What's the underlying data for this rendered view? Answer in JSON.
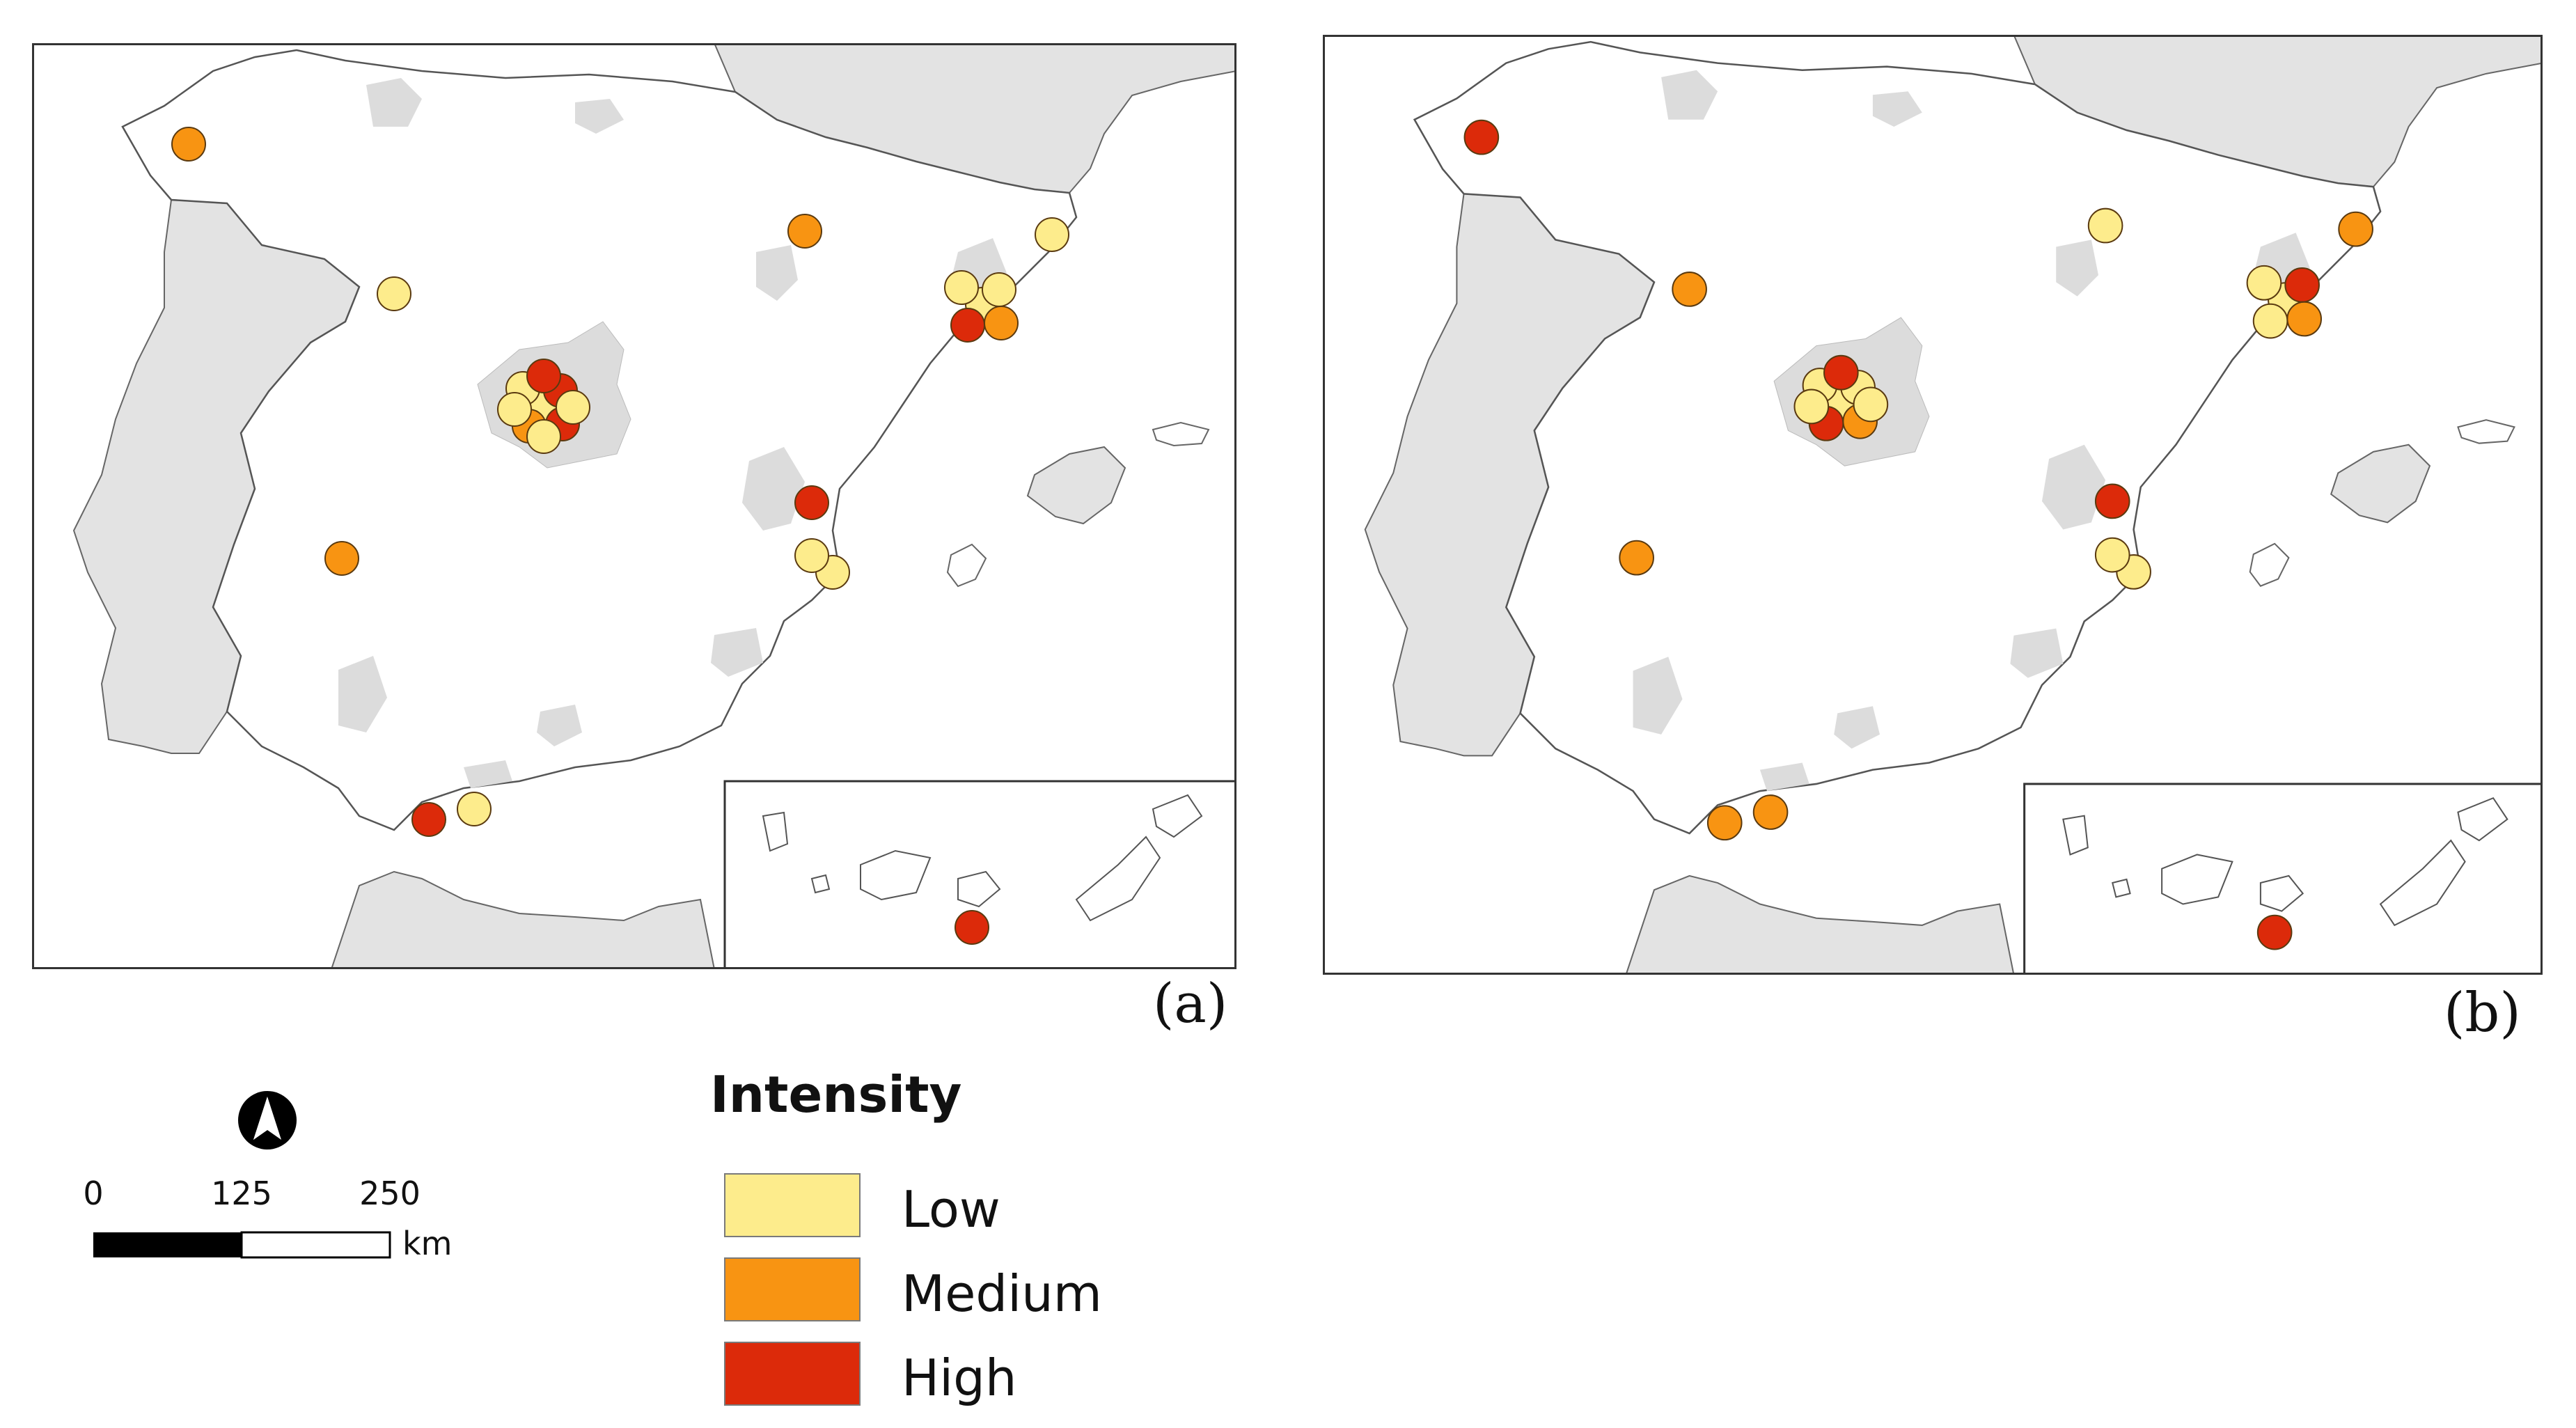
{
  "panels": [
    {
      "label": "(a)",
      "points": [
        {
          "intensity": "Medium",
          "place": "galicia-north"
        },
        {
          "intensity": "Medium",
          "place": "north-center"
        },
        {
          "intensity": "Low",
          "place": "northwest-inland"
        },
        {
          "intensity": "Low",
          "place": "barcelona"
        },
        {
          "intensity": "Low",
          "place": "barcelona"
        },
        {
          "intensity": "Low",
          "place": "girona-coast"
        },
        {
          "intensity": "Low",
          "place": "barcelona"
        },
        {
          "intensity": "High",
          "place": "barcelona"
        },
        {
          "intensity": "Medium",
          "place": "barcelona"
        },
        {
          "intensity": "Low",
          "place": "madrid"
        },
        {
          "intensity": "Low",
          "place": "madrid"
        },
        {
          "intensity": "High",
          "place": "madrid"
        },
        {
          "intensity": "Medium",
          "place": "madrid"
        },
        {
          "intensity": "High",
          "place": "madrid"
        },
        {
          "intensity": "High",
          "place": "madrid"
        },
        {
          "intensity": "Low",
          "place": "madrid"
        },
        {
          "intensity": "Low",
          "place": "madrid"
        },
        {
          "intensity": "Low",
          "place": "madrid"
        },
        {
          "intensity": "High",
          "place": "valencia"
        },
        {
          "intensity": "Low",
          "place": "valencia-coast"
        },
        {
          "intensity": "Low",
          "place": "valencia-coast"
        },
        {
          "intensity": "Medium",
          "place": "extremadura"
        },
        {
          "intensity": "High",
          "place": "gibraltar"
        },
        {
          "intensity": "Low",
          "place": "malaga"
        },
        {
          "intensity": "High",
          "place": "canaries"
        }
      ]
    },
    {
      "label": "(b)",
      "points": [
        {
          "intensity": "High",
          "place": "galicia-north"
        },
        {
          "intensity": "Low",
          "place": "north-center"
        },
        {
          "intensity": "Medium",
          "place": "northwest-inland"
        },
        {
          "intensity": "Medium",
          "place": "girona-coast"
        },
        {
          "intensity": "Low",
          "place": "barcelona"
        },
        {
          "intensity": "Low",
          "place": "barcelona"
        },
        {
          "intensity": "High",
          "place": "barcelona"
        },
        {
          "intensity": "Low",
          "place": "barcelona"
        },
        {
          "intensity": "Medium",
          "place": "barcelona"
        },
        {
          "intensity": "Low",
          "place": "madrid"
        },
        {
          "intensity": "Low",
          "place": "madrid"
        },
        {
          "intensity": "Low",
          "place": "madrid"
        },
        {
          "intensity": "High",
          "place": "madrid"
        },
        {
          "intensity": "Medium",
          "place": "madrid"
        },
        {
          "intensity": "High",
          "place": "madrid"
        },
        {
          "intensity": "Low",
          "place": "madrid"
        },
        {
          "intensity": "Low",
          "place": "madrid"
        },
        {
          "intensity": "High",
          "place": "valencia"
        },
        {
          "intensity": "Low",
          "place": "valencia-coast"
        },
        {
          "intensity": "Low",
          "place": "valencia-coast"
        },
        {
          "intensity": "Medium",
          "place": "extremadura"
        },
        {
          "intensity": "Medium",
          "place": "gibraltar"
        },
        {
          "intensity": "Medium",
          "place": "malaga"
        },
        {
          "intensity": "High",
          "place": "canaries"
        }
      ]
    }
  ],
  "legend": {
    "title": "Intensity",
    "items": [
      {
        "label": "Low",
        "color": "#fdec8c"
      },
      {
        "label": "Medium",
        "color": "#f89412"
      },
      {
        "label": "High",
        "color": "#dc2a0a"
      }
    ]
  },
  "scale_bar": {
    "ticks": [
      "0",
      "125",
      "250"
    ],
    "unit": "km"
  },
  "colors": {
    "land_other": "#e3e3e3",
    "land_spain": "#ffffff",
    "coastline": "#555555",
    "urban": "#dcdcdc"
  },
  "icons": {
    "north_arrow": "north-arrow-icon"
  }
}
